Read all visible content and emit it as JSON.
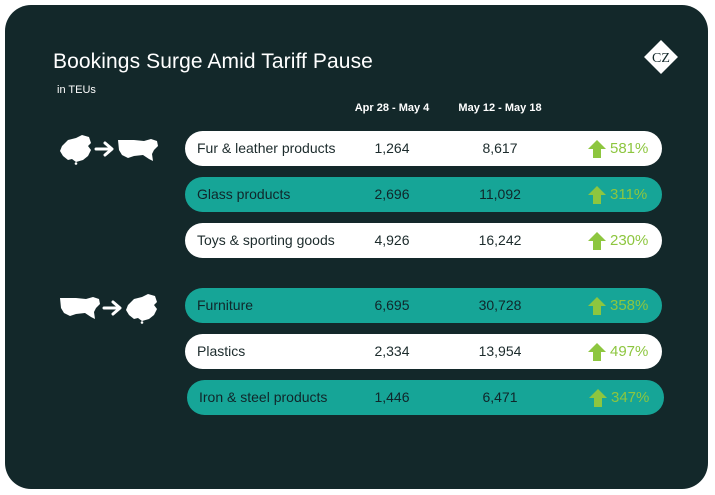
{
  "title": "Bookings Surge Amid Tariff Pause",
  "subtitle": "in TEUs",
  "logo_text": "CZ",
  "columns": [
    "Apr 28 - May 4",
    "May 12 - May 18"
  ],
  "routes": [
    {
      "from": "China",
      "to": "United States",
      "arrow_icon": "right-arrow-icon"
    },
    {
      "from": "United States",
      "to": "China",
      "arrow_icon": "right-arrow-icon"
    }
  ],
  "colors": {
    "background": "#13282a",
    "teal_row": "#16a597",
    "white_row": "#ffffff",
    "increase": "#8dc63f"
  },
  "chart_data": {
    "type": "table",
    "title": "Bookings Surge Amid Tariff Pause",
    "subtitle": "in TEUs",
    "columns": [
      "Apr 28 - May 4",
      "May 12 - May 18"
    ],
    "groups": [
      {
        "rows": [
          {
            "category": "Fur & leather products",
            "v1": "1,264",
            "v2": "8,617",
            "change": "581%",
            "style": "white"
          },
          {
            "category": "Glass products",
            "v1": "2,696",
            "v2": "11,092",
            "change": "311%",
            "style": "teal"
          },
          {
            "category": "Toys & sporting goods",
            "v1": "4,926",
            "v2": "16,242",
            "change": "230%",
            "style": "white"
          }
        ]
      },
      {
        "rows": [
          {
            "category": "Furniture",
            "v1": "6,695",
            "v2": "30,728",
            "change": "358%",
            "style": "teal"
          },
          {
            "category": "Plastics",
            "v1": "2,334",
            "v2": "13,954",
            "change": "497%",
            "style": "white"
          },
          {
            "category": "Iron & steel products",
            "v1": "1,446",
            "v2": "6,471",
            "change": "347%",
            "style": "teal"
          }
        ]
      }
    ]
  }
}
